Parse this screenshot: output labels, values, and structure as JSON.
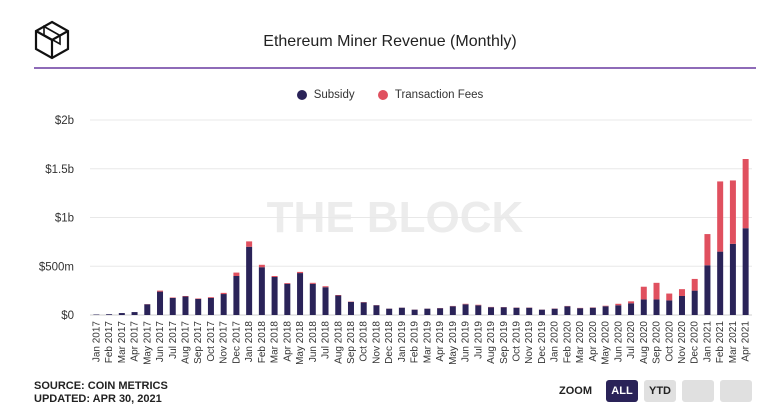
{
  "header": {
    "title": "Ethereum Miner Revenue (Monthly)"
  },
  "watermark": "THE BLOCK",
  "footer": {
    "source": "SOURCE: COIN METRICS",
    "updated": "UPDATED: APR 30, 2021"
  },
  "zoom": {
    "label": "ZOOM",
    "buttons": [
      "ALL",
      "YTD",
      "",
      ""
    ],
    "active": "ALL"
  },
  "colors": {
    "subsidy": "#2a2358",
    "fees": "#e0505f",
    "accent": "#8e6bb8"
  },
  "chart_data": {
    "type": "bar",
    "stacked": true,
    "grid": true,
    "legend_position": "top-center",
    "ylim": [
      0,
      2000
    ],
    "yunit": "millions USD",
    "yticks": [
      {
        "value": 0,
        "label": "$0"
      },
      {
        "value": 500,
        "label": "$500m"
      },
      {
        "value": 1000,
        "label": "$1b"
      },
      {
        "value": 1500,
        "label": "$1.5b"
      },
      {
        "value": 2000,
        "label": "$2b"
      }
    ],
    "categories": [
      "Jan 2017",
      "Feb 2017",
      "Mar 2017",
      "Apr 2017",
      "May 2017",
      "Jun 2017",
      "Jul 2017",
      "Aug 2017",
      "Sep 2017",
      "Oct 2017",
      "Nov 2017",
      "Dec 2017",
      "Jan 2018",
      "Feb 2018",
      "Mar 2018",
      "Apr 2018",
      "May 2018",
      "Jun 2018",
      "Jul 2018",
      "Aug 2018",
      "Sep 2018",
      "Oct 2018",
      "Nov 2018",
      "Dec 2018",
      "Jan 2019",
      "Feb 2019",
      "Mar 2019",
      "Apr 2019",
      "May 2019",
      "Jun 2019",
      "Jul 2019",
      "Aug 2019",
      "Sep 2019",
      "Oct 2019",
      "Nov 2019",
      "Dec 2019",
      "Jan 2020",
      "Feb 2020",
      "Mar 2020",
      "Apr 2020",
      "May 2020",
      "Jun 2020",
      "Jul 2020",
      "Aug 2020",
      "Sep 2020",
      "Oct 2020",
      "Nov 2020",
      "Dec 2020",
      "Jan 2021",
      "Feb 2021",
      "Mar 2021",
      "Apr 2021"
    ],
    "series": [
      {
        "name": "Subsidy",
        "values": [
          5,
          8,
          20,
          30,
          110,
          240,
          175,
          190,
          165,
          175,
          215,
          400,
          700,
          490,
          390,
          320,
          430,
          320,
          285,
          200,
          135,
          130,
          100,
          65,
          75,
          55,
          65,
          70,
          90,
          110,
          100,
          80,
          80,
          75,
          75,
          55,
          65,
          90,
          70,
          75,
          90,
          100,
          120,
          160,
          160,
          150,
          195,
          250,
          510,
          650,
          730,
          890
        ]
      },
      {
        "name": "Transaction Fees",
        "values": [
          0,
          0,
          0,
          0,
          2,
          10,
          5,
          5,
          5,
          8,
          12,
          35,
          55,
          25,
          10,
          8,
          12,
          10,
          10,
          5,
          3,
          3,
          2,
          1,
          1,
          1,
          1,
          2,
          3,
          5,
          5,
          3,
          2,
          2,
          2,
          1,
          2,
          3,
          3,
          3,
          5,
          15,
          20,
          130,
          170,
          70,
          70,
          120,
          320,
          720,
          650,
          710
        ]
      }
    ]
  }
}
